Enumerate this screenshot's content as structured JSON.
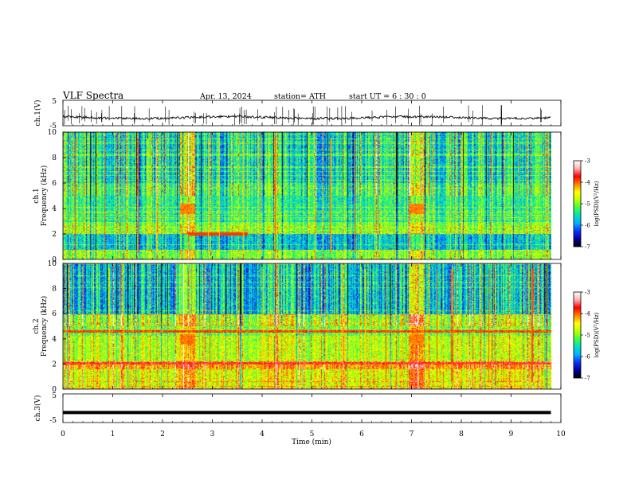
{
  "header": {
    "title": "VLF  Spectra",
    "date": "Apr. 13,  2024",
    "station": "station= ATH",
    "start": "start  UT  =   6  : 30 : 0"
  },
  "chart_data": [
    {
      "type": "line",
      "name": "ch1-waveform",
      "ylabel": "ch.1(V)",
      "ylim": [
        -5,
        5
      ],
      "yticks": [
        "5",
        "-5"
      ],
      "xlim": [
        0,
        10
      ],
      "trace": {
        "x_end": 9.8,
        "level": -1.8,
        "color": "#000000"
      }
    },
    {
      "type": "heatmap",
      "name": "ch1-spectrogram",
      "ylabel": "ch.1\nFrequency  (kHz)",
      "ylim": [
        0,
        10
      ],
      "yticks": [
        "0",
        "2",
        "4",
        "6",
        "8",
        "10"
      ],
      "xlim": [
        0,
        10
      ],
      "data_x_end": 9.8,
      "colorbar": {
        "label": "log(PSD)(V²/Hz)",
        "ticks": [
          "-3",
          "-4",
          "-5",
          "-6",
          "-7"
        ],
        "range": [
          -7,
          -3
        ]
      }
    },
    {
      "type": "heatmap",
      "name": "ch2-spectrogram",
      "ylabel": "ch.2\nFrequency  (kHz)",
      "ylim": [
        0,
        10
      ],
      "yticks": [
        "0",
        "2",
        "4",
        "6",
        "8",
        "10"
      ],
      "xlim": [
        0,
        10
      ],
      "data_x_end": 9.8,
      "colorbar": {
        "label": "log(PSD)(V²/Hz)",
        "ticks": [
          "-3",
          "-4",
          "-5",
          "-6",
          "-7"
        ],
        "range": [
          -7,
          -3
        ]
      }
    },
    {
      "type": "line",
      "name": "ch3-waveform",
      "ylabel": "ch.3(V)",
      "ylim": [
        -5,
        5
      ],
      "yticks": [
        "5",
        "-5"
      ],
      "xlim": [
        0,
        10
      ],
      "trace": {
        "x_end": 9.8,
        "level": -1.5,
        "color": "#000000"
      }
    }
  ],
  "xaxis": {
    "label": "Time  (min)",
    "ticks": [
      "0",
      "1",
      "2",
      "3",
      "4",
      "5",
      "6",
      "7",
      "8",
      "9",
      "10"
    ]
  },
  "colors": {
    "colormap": [
      "#000000",
      "#0000a0",
      "#1030ff",
      "#00b0ff",
      "#00e0c0",
      "#40ff40",
      "#c0ff00",
      "#ffff00",
      "#ff8000",
      "#ff0000",
      "#ffb0b0",
      "#ffffff"
    ]
  }
}
